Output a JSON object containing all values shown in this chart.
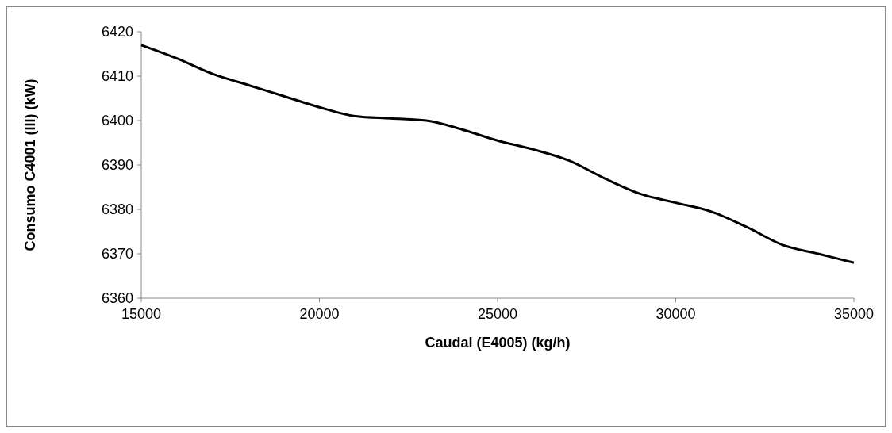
{
  "chart_data": {
    "type": "line",
    "xlabel": "Caudal (E4005) (kg/h)",
    "ylabel": "Consumo C4001 (III) (kW)",
    "xlim": [
      15000,
      35000
    ],
    "xticks": [
      15000,
      20000,
      25000,
      30000,
      35000
    ],
    "ylim": [
      6360,
      6420
    ],
    "yticks": [
      6360,
      6370,
      6380,
      6390,
      6400,
      6410,
      6420
    ],
    "grid": false,
    "marker": "none",
    "line_style": "solid",
    "x": [
      15000,
      16000,
      17000,
      18000,
      19000,
      20000,
      21000,
      22000,
      23000,
      24000,
      25000,
      26000,
      27000,
      28000,
      29000,
      30000,
      31000,
      32000,
      33000,
      34000,
      35000
    ],
    "series": [
      {
        "color": "#000000",
        "values": [
          6417,
          6414,
          6410.5,
          6408,
          6405.5,
          6403,
          6401,
          6400.5,
          6400,
          6398,
          6395.5,
          6393.5,
          6391,
          6387,
          6383.5,
          6381.5,
          6379.5,
          6376,
          6372,
          6370,
          6368
        ]
      }
    ]
  }
}
